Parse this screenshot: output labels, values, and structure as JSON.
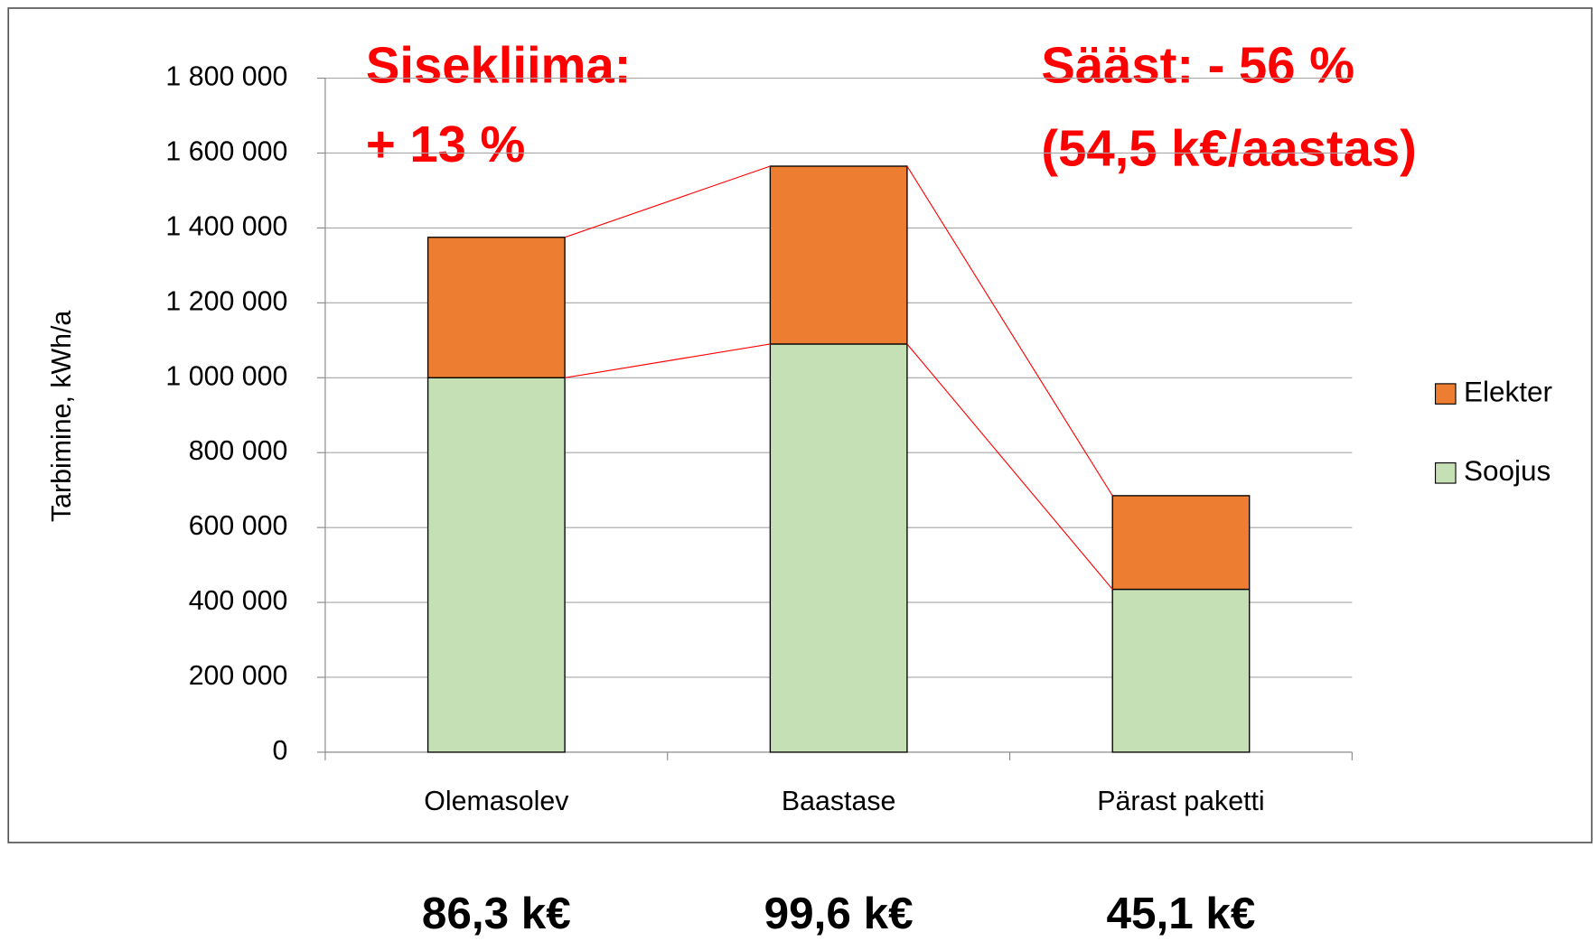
{
  "chart_data": {
    "type": "stacked_bar",
    "y_label": "Tarbimine, kWh/a",
    "categories": [
      "Olemasolev",
      "Baastase",
      "Pärast paketti"
    ],
    "series": [
      {
        "name": "Soojus",
        "color": "#c5e0b4",
        "values": [
          1000000,
          1090000,
          435000
        ]
      },
      {
        "name": "Elekter",
        "color": "#ed7d31",
        "values": [
          375000,
          475000,
          250000
        ]
      }
    ],
    "ylim": [
      0,
      1800000
    ],
    "yticks": [
      0,
      {
        "value": 200000,
        "label": "200 000"
      },
      {
        "value": 400000,
        "label": "400 000"
      },
      {
        "value": 600000,
        "label": "600 000"
      },
      {
        "value": 800000,
        "label": "800 000"
      },
      {
        "value": 1000000,
        "label": "1 000 000"
      },
      {
        "value": 1200000,
        "label": "1 200 000"
      },
      {
        "value": 1400000,
        "label": "1 400 000"
      },
      {
        "value": 1600000,
        "label": "1 600 000"
      },
      {
        "value": 1800000,
        "label": "1 800 000"
      }
    ],
    "grid": true,
    "legend": "right",
    "connector_color": "#ff0000",
    "annotations": [
      "Sisekliima:",
      "+ 13 %",
      "Sääst: - 56 %",
      "(54,5 k€/aastas)"
    ],
    "cost_labels": [
      "86,3 k€",
      "99,6 k€",
      "45,1 k€"
    ]
  }
}
